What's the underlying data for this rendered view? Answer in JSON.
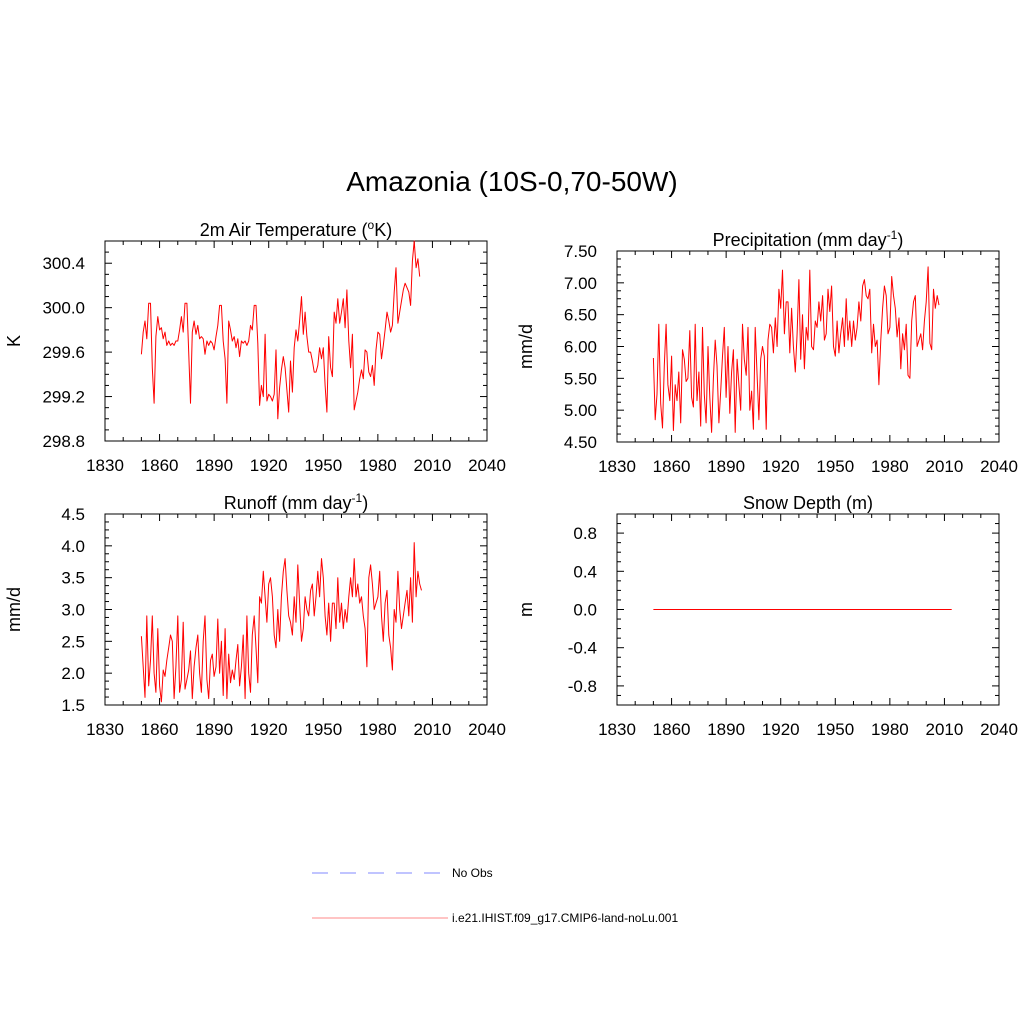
{
  "page": {
    "title": "Amazonia (10S-0,70-50W)"
  },
  "chart_data": [
    {
      "type": "line",
      "title": "2m Air Temperature (",
      "title_sup": "o",
      "title_end": "K)",
      "xlabel": "",
      "ylabel": "K",
      "xlim": [
        1830,
        2040
      ],
      "ylim": [
        298.8,
        300.6
      ],
      "xticks": [
        "1830",
        "1860",
        "1890",
        "1920",
        "1950",
        "1980",
        "2010",
        "2040"
      ],
      "yticks": [
        {
          "v": 298.8,
          "label": "298.8"
        },
        {
          "v": 299.2,
          "label": "299.2"
        },
        {
          "v": 299.6,
          "label": "299.6"
        },
        {
          "v": 300.0,
          "label": "300.0"
        },
        {
          "v": 300.4,
          "label": "300.4"
        }
      ],
      "grid": false,
      "series": [
        {
          "color": "#ff0000",
          "x0": 1850,
          "values": [
            299.58,
            299.78,
            299.88,
            299.72,
            300.04,
            300.04,
            299.46,
            299.14,
            299.74,
            299.92,
            299.8,
            299.82,
            299.72,
            299.78,
            299.66,
            299.7,
            299.66,
            299.68,
            299.66,
            299.7,
            299.7,
            299.8,
            299.92,
            299.78,
            300.04,
            300.04,
            299.6,
            299.14,
            299.78,
            299.88,
            299.76,
            299.84,
            299.72,
            299.74,
            299.72,
            299.58,
            299.7,
            299.66,
            299.7,
            299.68,
            299.62,
            299.74,
            299.84,
            300.02,
            300.02,
            299.7,
            299.54,
            299.14,
            299.88,
            299.8,
            299.7,
            299.74,
            299.64,
            299.72,
            299.56,
            299.7,
            299.68,
            299.7,
            299.66,
            299.7,
            299.84,
            299.8,
            300.02,
            300.02,
            299.68,
            299.12,
            299.3,
            299.2,
            299.76,
            299.16,
            299.22,
            299.2,
            299.16,
            299.22,
            299.62,
            299.0,
            299.28,
            299.44,
            299.56,
            299.46,
            299.26,
            299.06,
            299.52,
            299.24,
            299.64,
            299.8,
            299.7,
            299.88,
            300.1,
            299.76,
            299.96,
            299.74,
            299.6,
            299.6,
            299.52,
            299.42,
            299.42,
            299.48,
            299.64,
            299.54,
            299.64,
            299.3,
            299.06,
            299.74,
            299.46,
            299.38,
            299.96,
            299.86,
            300.08,
            299.86,
            299.96,
            300.08,
            299.82,
            300.16,
            299.7,
            299.46,
            299.76,
            299.08,
            299.16,
            299.24,
            299.36,
            299.44,
            299.36,
            299.62,
            299.6,
            299.42,
            299.38,
            299.48,
            299.3,
            299.62,
            299.78,
            299.76,
            299.54,
            299.66,
            299.8,
            299.96,
            299.88,
            299.78,
            299.84,
            300.14,
            300.36,
            299.86,
            299.96,
            300.06,
            300.16,
            300.22,
            300.18,
            300.14,
            300.02,
            300.42,
            300.6,
            300.36,
            300.44,
            300.28
          ]
        }
      ]
    },
    {
      "type": "line",
      "title": "Precipitation (mm day",
      "title_sup": "-1",
      "title_end": ")",
      "xlabel": "",
      "ylabel": "mm/d",
      "xlim": [
        1830,
        2040
      ],
      "ylim": [
        4.5,
        7.5
      ],
      "xticks": [
        "1830",
        "1860",
        "1890",
        "1920",
        "1950",
        "1980",
        "2010",
        "2040"
      ],
      "yticks": [
        {
          "v": 4.5,
          "label": "4.50"
        },
        {
          "v": 5.0,
          "label": "5.00"
        },
        {
          "v": 5.5,
          "label": "5.50"
        },
        {
          "v": 6.0,
          "label": "6.00"
        },
        {
          "v": 6.5,
          "label": "6.50"
        },
        {
          "v": 7.0,
          "label": "7.00"
        },
        {
          "v": 7.5,
          "label": "7.50"
        }
      ],
      "grid": false,
      "series": [
        {
          "color": "#ff0000",
          "x0": 1850,
          "values": [
            5.82,
            4.85,
            5.25,
            6.35,
            5.1,
            4.72,
            5.7,
            6.35,
            5.4,
            5.15,
            5.85,
            4.68,
            5.4,
            5.15,
            5.6,
            4.8,
            5.95,
            5.8,
            5.45,
            5.5,
            6.25,
            5.2,
            5.05,
            6.35,
            5.15,
            5.6,
            4.75,
            6.3,
            5.25,
            4.8,
            6.0,
            5.2,
            4.65,
            5.5,
            6.1,
            5.7,
            4.8,
            5.3,
            5.85,
            6.3,
            5.2,
            6.0,
            4.95,
            5.6,
            5.95,
            4.65,
            5.8,
            5.4,
            5.0,
            6.35,
            5.8,
            5.55,
            6.3,
            5.0,
            5.3,
            4.7,
            6.3,
            5.55,
            4.85,
            5.8,
            6.0,
            5.85,
            4.7,
            6.1,
            6.35,
            6.3,
            5.9,
            6.45,
            6.0,
            6.9,
            6.6,
            7.2,
            6.2,
            6.7,
            6.7,
            5.9,
            6.6,
            6.0,
            5.6,
            6.2,
            7.05,
            5.8,
            6.5,
            5.65,
            6.3,
            6.1,
            7.2,
            6.0,
            5.95,
            6.4,
            6.3,
            6.7,
            6.4,
            6.8,
            6.1,
            6.2,
            6.9,
            6.55,
            6.95,
            6.0,
            5.85,
            6.4,
            5.9,
            6.2,
            6.45,
            6.0,
            6.75,
            6.1,
            6.4,
            6.0,
            6.4,
            6.1,
            6.3,
            6.7,
            6.4,
            6.95,
            7.05,
            6.8,
            6.75,
            6.9,
            5.9,
            6.35,
            6.0,
            6.1,
            5.4,
            6.1,
            6.6,
            6.95,
            6.8,
            6.2,
            6.3,
            7.1,
            6.8,
            6.6,
            6.15,
            6.45,
            5.65,
            6.2,
            5.95,
            6.35,
            5.55,
            5.5,
            6.4,
            6.7,
            6.8,
            6.0,
            6.1,
            6.2,
            5.95,
            6.4,
            6.7,
            7.25,
            6.05,
            5.95,
            6.9,
            6.6,
            6.8,
            6.65
          ]
        }
      ]
    },
    {
      "type": "line",
      "title": "Runoff (mm day",
      "title_sup": "-1",
      "title_end": ")",
      "xlabel": "",
      "ylabel": "mm/d",
      "xlim": [
        1830,
        2040
      ],
      "ylim": [
        1.5,
        4.5
      ],
      "xticks": [
        "1830",
        "1860",
        "1890",
        "1920",
        "1950",
        "1980",
        "2010",
        "2040"
      ],
      "yticks": [
        {
          "v": 1.5,
          "label": "1.5"
        },
        {
          "v": 2.0,
          "label": "2.0"
        },
        {
          "v": 2.5,
          "label": "2.5"
        },
        {
          "v": 3.0,
          "label": "3.0"
        },
        {
          "v": 3.5,
          "label": "3.5"
        },
        {
          "v": 4.0,
          "label": "4.0"
        },
        {
          "v": 4.5,
          "label": "4.5"
        }
      ],
      "grid": false,
      "series": [
        {
          "color": "#ff0000",
          "x0": 1850,
          "values": [
            2.58,
            2.1,
            1.62,
            2.9,
            1.8,
            2.2,
            2.9,
            2.0,
            1.7,
            2.7,
            1.8,
            1.55,
            2.05,
            1.95,
            2.2,
            2.4,
            2.6,
            2.5,
            1.6,
            2.1,
            2.9,
            1.7,
            1.9,
            2.8,
            1.75,
            1.9,
            2.05,
            2.35,
            1.6,
            2.1,
            2.4,
            2.6,
            2.0,
            1.7,
            2.5,
            2.9,
            1.9,
            1.6,
            2.2,
            2.3,
            1.95,
            2.1,
            2.85,
            2.0,
            2.5,
            1.65,
            2.7,
            1.6,
            2.3,
            1.85,
            2.05,
            1.9,
            2.2,
            2.45,
            1.8,
            2.1,
            2.6,
            1.6,
            2.9,
            2.0,
            1.7,
            2.6,
            2.9,
            2.4,
            1.85,
            3.2,
            3.1,
            3.6,
            3.2,
            2.8,
            3.4,
            3.5,
            3.2,
            2.6,
            2.4,
            3.0,
            2.5,
            3.2,
            3.6,
            3.8,
            3.3,
            2.9,
            2.8,
            2.6,
            3.2,
            2.8,
            3.7,
            3.1,
            2.5,
            2.7,
            3.2,
            3.0,
            2.9,
            3.3,
            3.4,
            2.9,
            3.2,
            3.6,
            3.2,
            3.8,
            3.5,
            2.9,
            2.6,
            3.1,
            2.5,
            3.1,
            3.1,
            2.7,
            3.5,
            2.8,
            3.1,
            2.7,
            3.0,
            2.8,
            3.2,
            3.5,
            3.2,
            3.8,
            3.2,
            3.4,
            3.1,
            3.2,
            2.9,
            2.7,
            2.1,
            3.5,
            3.7,
            3.4,
            3.0,
            3.1,
            3.2,
            3.6,
            2.9,
            2.5,
            3.1,
            3.3,
            2.6,
            2.4,
            2.05,
            3.0,
            2.8,
            3.6,
            3.0,
            2.7,
            2.9,
            3.1,
            3.3,
            2.9,
            3.5,
            2.8,
            4.05,
            3.2,
            3.6,
            3.4,
            3.3
          ]
        }
      ]
    },
    {
      "type": "line",
      "title": "Snow Depth (m)",
      "title_sup": "",
      "title_end": "",
      "xlabel": "",
      "ylabel": "m",
      "xlim": [
        1830,
        2040
      ],
      "ylim": [
        -1.0,
        1.0
      ],
      "xticks": [
        "1830",
        "1860",
        "1890",
        "1920",
        "1950",
        "1980",
        "2010",
        "2040"
      ],
      "yticks": [
        {
          "v": -0.8,
          "label": "-0.8"
        },
        {
          "v": -0.4,
          "label": "-0.4"
        },
        {
          "v": 0.0,
          "label": "0.0"
        },
        {
          "v": 0.4,
          "label": "0.4"
        },
        {
          "v": 0.8,
          "label": "0.8"
        }
      ],
      "grid": false,
      "series": [
        {
          "color": "#ff0000",
          "x0": 1850,
          "x1": 2014,
          "constant": 0.0
        }
      ]
    }
  ],
  "legend": [
    {
      "label": "No Obs",
      "color": "#9aa0ff",
      "style": "dashed"
    },
    {
      "label": "i.e21.IHIST.f09_g17.CMIP6-land-noLu.001",
      "color": "#ffa0a0",
      "style": "solid"
    }
  ]
}
